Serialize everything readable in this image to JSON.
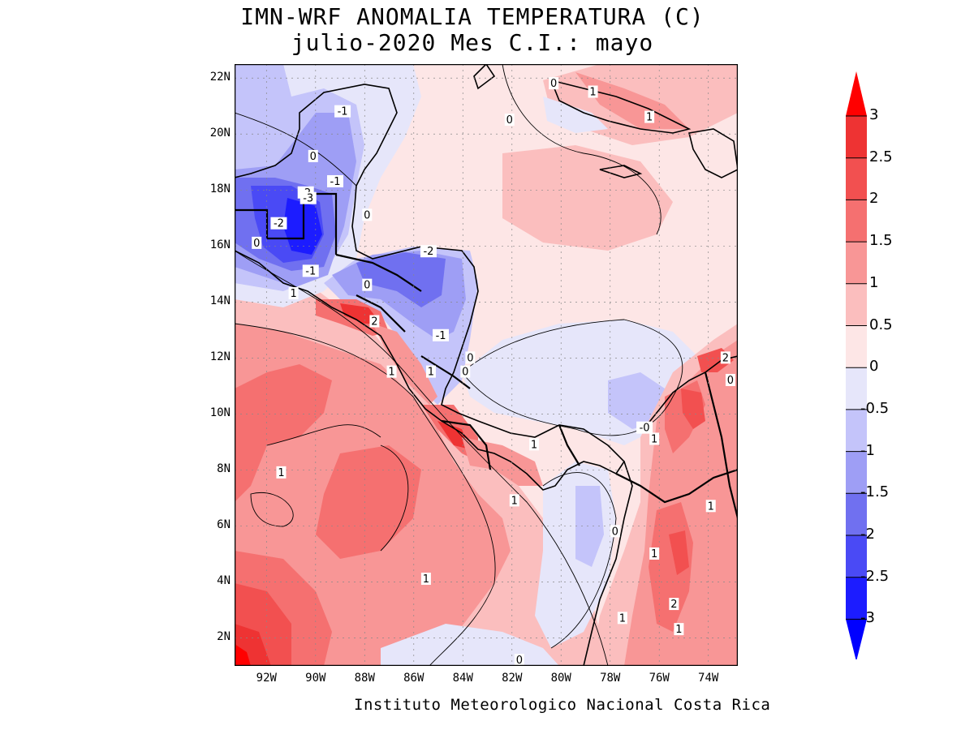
{
  "title": {
    "line1": "IMN-WRF  ANOMALIA TEMPERATURA (C)",
    "line2": "julio-2020 Mes C.I.: mayo"
  },
  "credit": "Instituto Meteorologico Nacional Costa Rica",
  "axes": {
    "lat_labels": [
      "22N",
      "20N",
      "18N",
      "16N",
      "14N",
      "12N",
      "10N",
      "8N",
      "6N",
      "4N",
      "2N"
    ],
    "lon_labels": [
      "92W",
      "90W",
      "88W",
      "86W",
      "84W",
      "82W",
      "80W",
      "78W",
      "76W",
      "74W"
    ],
    "lat_range": [
      1,
      22.5
    ],
    "lon_range": [
      -93.3,
      -72.8
    ]
  },
  "colorbar": {
    "labels": [
      "3",
      "2.5",
      "2",
      "1.5",
      "1",
      "0.5",
      "0",
      "-0.5",
      "-1",
      "-1.5",
      "-2",
      "-2.5",
      "-3"
    ],
    "colors": [
      "#ff0000",
      "#ee3333",
      "#f25050",
      "#f57070",
      "#f89696",
      "#fbbebe",
      "#fde6e6",
      "#e6e6fa",
      "#c4c4fa",
      "#9e9ef5",
      "#7070f0",
      "#4a4af5",
      "#1c1cff",
      "#0000ff"
    ]
  },
  "contour_labels": [
    {
      "text": "-1",
      "lon": -88.9,
      "lat": 20.8
    },
    {
      "text": "0",
      "lon": -90.1,
      "lat": 19.2
    },
    {
      "text": "-1",
      "lon": -89.2,
      "lat": 18.3
    },
    {
      "text": "-2",
      "lon": -90.4,
      "lat": 17.9
    },
    {
      "text": "-3",
      "lon": -90.3,
      "lat": 17.7
    },
    {
      "text": "-2",
      "lon": -91.5,
      "lat": 16.8
    },
    {
      "text": "0",
      "lon": -92.4,
      "lat": 16.1
    },
    {
      "text": "0",
      "lon": -87.9,
      "lat": 17.1
    },
    {
      "text": "-1",
      "lon": -90.2,
      "lat": 15.1
    },
    {
      "text": "1",
      "lon": -90.9,
      "lat": 14.3
    },
    {
      "text": "0",
      "lon": -87.9,
      "lat": 14.6
    },
    {
      "text": "-2",
      "lon": -85.4,
      "lat": 15.8
    },
    {
      "text": "2",
      "lon": -87.6,
      "lat": 13.3
    },
    {
      "text": "-1",
      "lon": -84.9,
      "lat": 12.8
    },
    {
      "text": "0",
      "lon": -83.7,
      "lat": 12.0
    },
    {
      "text": "1",
      "lon": -86.9,
      "lat": 11.5
    },
    {
      "text": "1",
      "lon": -85.3,
      "lat": 11.5
    },
    {
      "text": "0",
      "lon": -83.9,
      "lat": 11.5
    },
    {
      "text": "0",
      "lon": -80.3,
      "lat": 21.8
    },
    {
      "text": "1",
      "lon": -78.7,
      "lat": 21.5
    },
    {
      "text": "0",
      "lon": -82.1,
      "lat": 20.5
    },
    {
      "text": "1",
      "lon": -76.4,
      "lat": 20.6
    },
    {
      "text": "2",
      "lon": -73.3,
      "lat": 12.0
    },
    {
      "text": "0",
      "lon": -73.1,
      "lat": 11.2
    },
    {
      "text": "-0",
      "lon": -76.6,
      "lat": 9.5
    },
    {
      "text": "1",
      "lon": -76.2,
      "lat": 9.1
    },
    {
      "text": "1",
      "lon": -81.1,
      "lat": 8.9
    },
    {
      "text": "1",
      "lon": -91.4,
      "lat": 7.9
    },
    {
      "text": "1",
      "lon": -81.9,
      "lat": 6.9
    },
    {
      "text": "1",
      "lon": -73.9,
      "lat": 6.7
    },
    {
      "text": "0",
      "lon": -77.8,
      "lat": 5.8
    },
    {
      "text": "1",
      "lon": -76.2,
      "lat": 5.0
    },
    {
      "text": "1",
      "lon": -85.5,
      "lat": 4.1
    },
    {
      "text": "2",
      "lon": -75.4,
      "lat": 3.2
    },
    {
      "text": "1",
      "lon": -77.5,
      "lat": 2.7
    },
    {
      "text": "1",
      "lon": -75.2,
      "lat": 2.3
    },
    {
      "text": "0",
      "lon": -81.7,
      "lat": 1.2
    }
  ]
}
